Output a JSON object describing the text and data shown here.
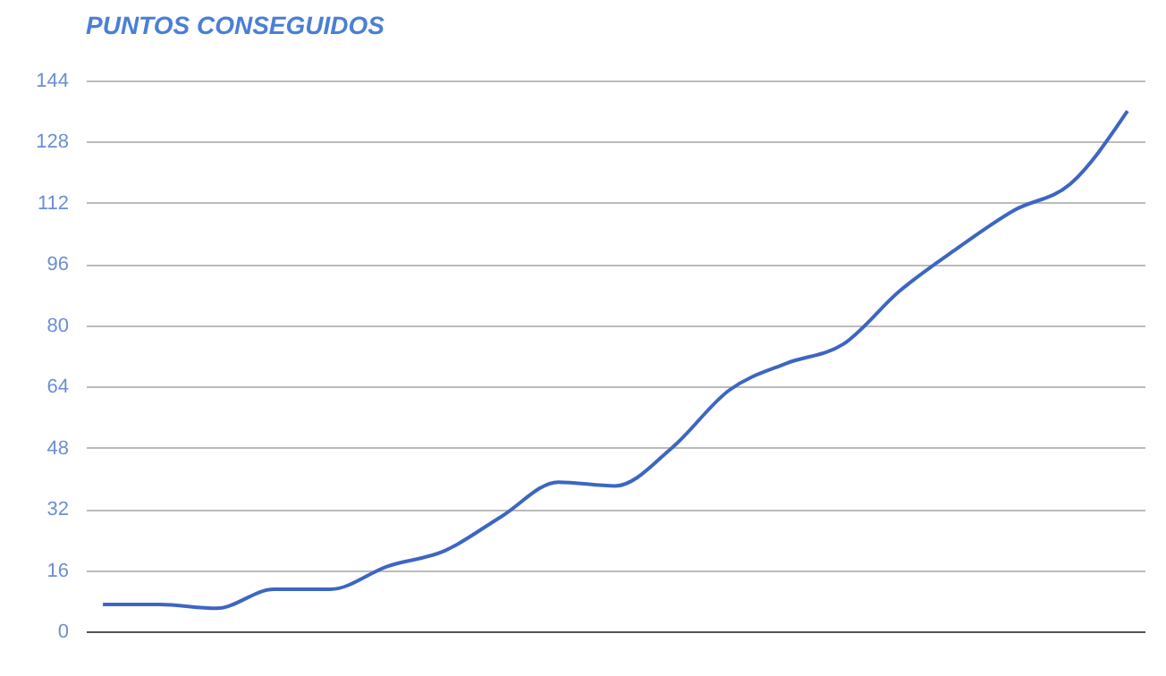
{
  "chart_data": {
    "type": "line",
    "title": "PUNTOS CONSEGUIDOS",
    "categories": [
      null,
      null,
      null,
      null,
      null,
      null,
      null,
      null,
      null,
      null,
      null,
      null,
      null,
      null,
      null,
      null,
      null,
      null,
      null
    ],
    "series": [
      {
        "color": "#3d66c2",
        "values": [
          7,
          7,
          6,
          11,
          11,
          17,
          21,
          30,
          39,
          38,
          48,
          63,
          70,
          75,
          89,
          100,
          110,
          117,
          136
        ]
      }
    ],
    "ylim": [
      0,
      144
    ],
    "yticks": [
      0,
      16,
      32,
      48,
      64,
      80,
      96,
      112,
      128,
      144
    ],
    "grid": "y",
    "marker": "none"
  }
}
